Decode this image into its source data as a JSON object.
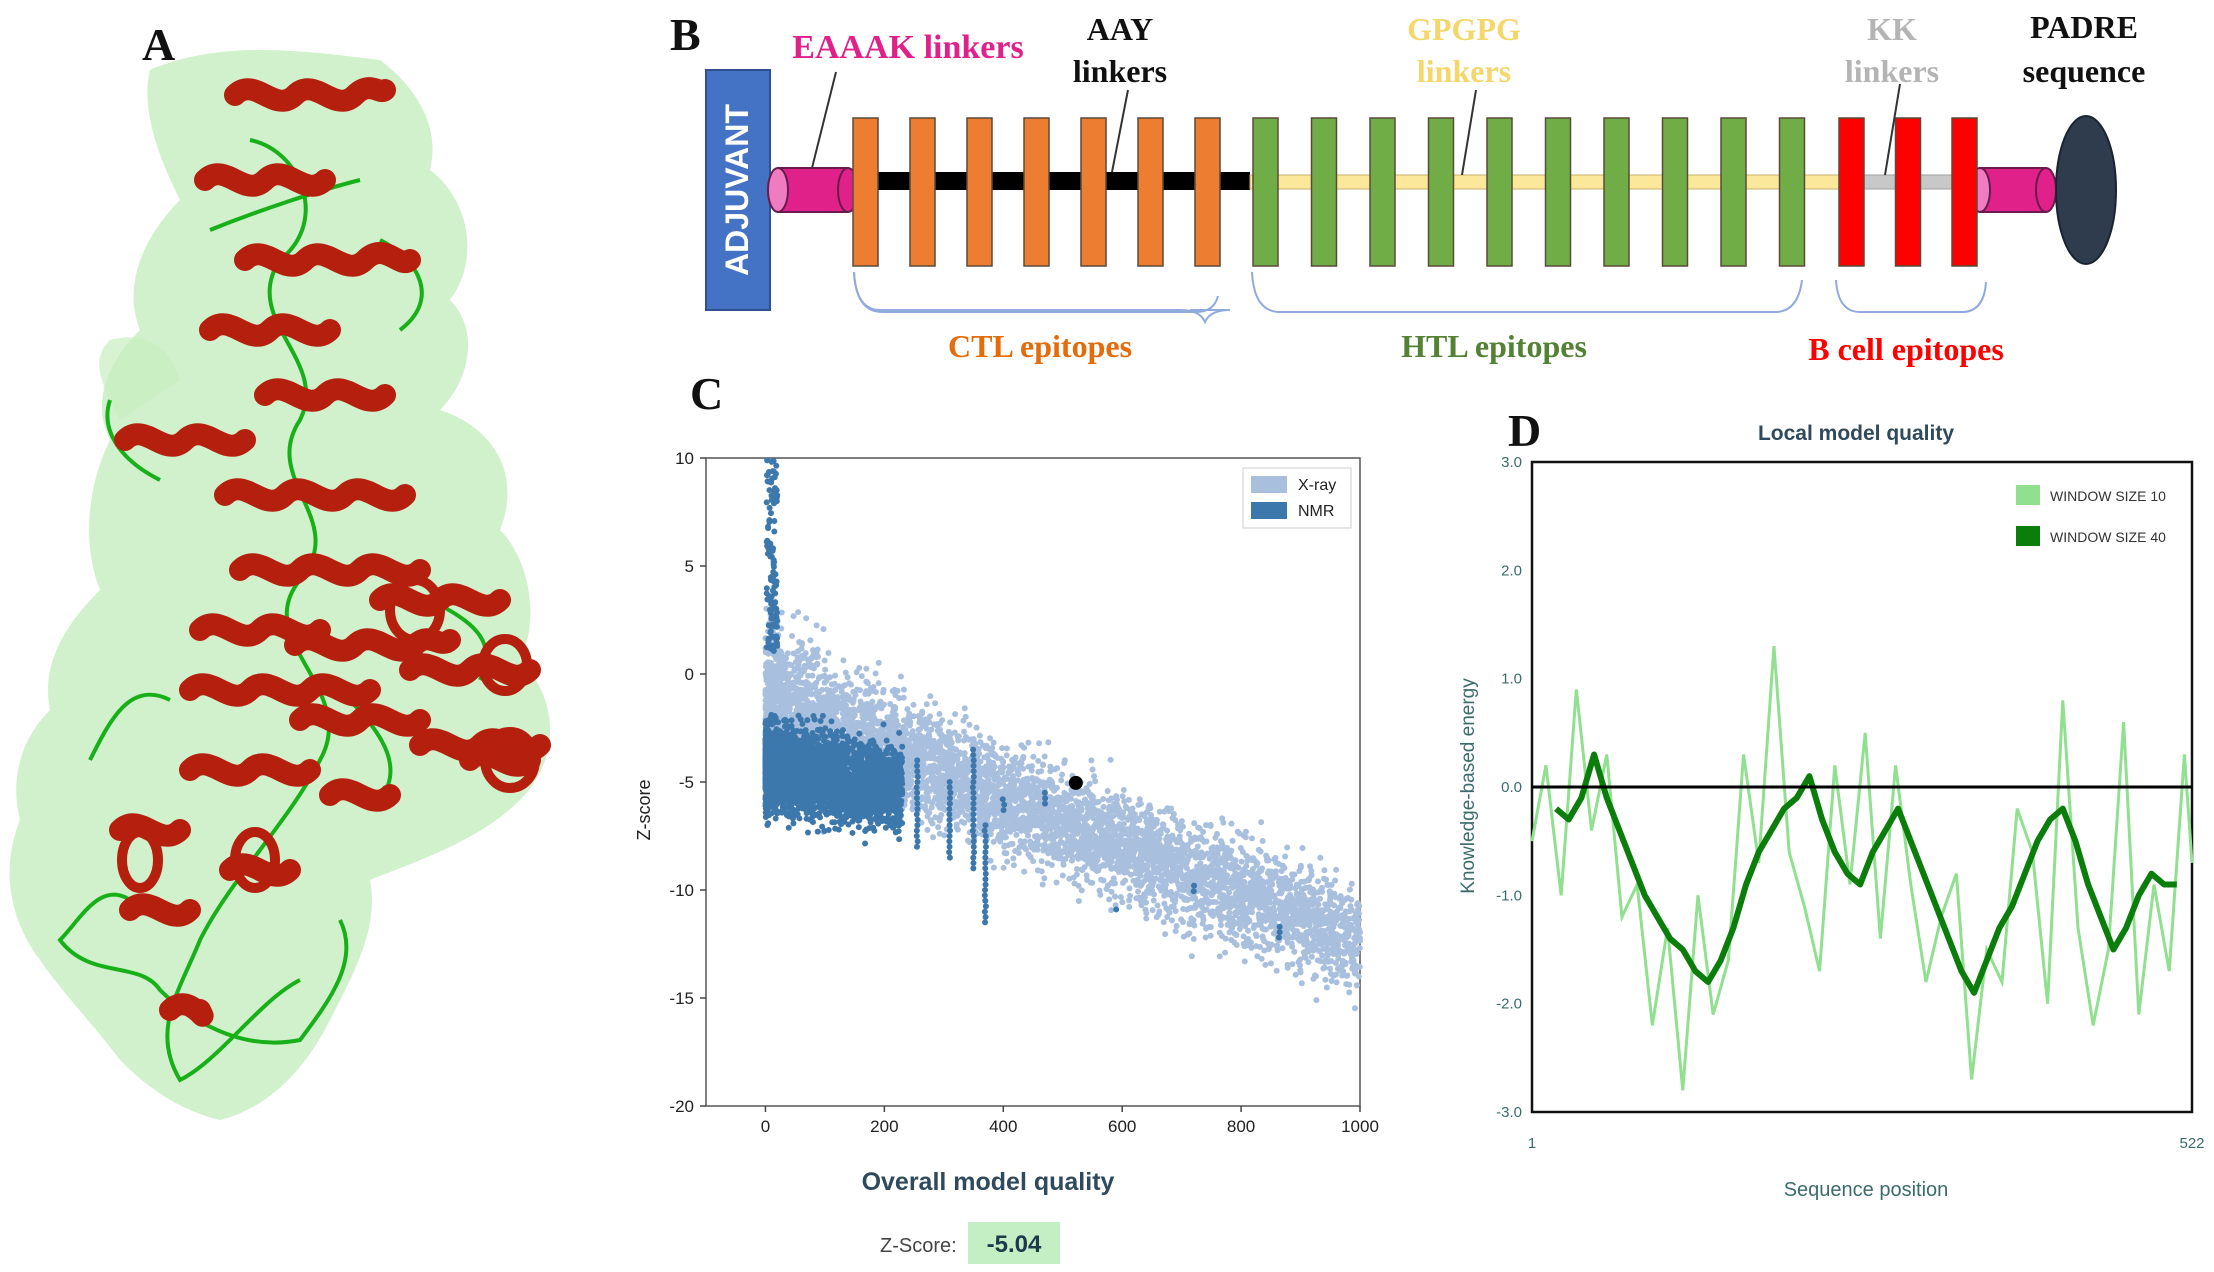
{
  "panels": {
    "a": "A",
    "b": "B",
    "c": "C",
    "d": "D"
  },
  "construct": {
    "adjuvant": "ADJUVANT",
    "eaaak": "EAAAK linkers",
    "aay": [
      "AAY",
      "linkers"
    ],
    "gpgpg": [
      "GPGPG",
      "linkers"
    ],
    "kk": [
      "KK",
      "linkers"
    ],
    "padre": [
      "PADRE",
      "sequence"
    ],
    "ctl": "CTL epitopes",
    "htl": "HTL epitopes",
    "bcell": "B cell epitopes",
    "ctl_count": 7,
    "htl_count": 10,
    "bcell_count": 3,
    "colors": {
      "adjuvant": "#4472c4",
      "eaaak": "#e0218a",
      "ctl": "#ed7d31",
      "htl": "#70ad47",
      "bcell": "#ff0000",
      "aay_linker": "#000000",
      "gpgpg_linker": "#fce89a",
      "kk_linker": "#c8c8c8",
      "padre": "#2e3c4e",
      "label_magenta": "#e0218a",
      "label_gpgpg": "#f5d66b",
      "label_kk": "#b4b4b4",
      "label_ctl": "#e46c0a",
      "label_htl": "#548235",
      "label_bcell": "#ff0000"
    }
  },
  "chart_data": [
    {
      "type": "scatter",
      "panel": "C",
      "title": "Overall model quality",
      "xlabel": "",
      "ylabel": "Z-score",
      "xlim": [
        -100,
        1000
      ],
      "ylim": [
        -20,
        10
      ],
      "xticks": [
        0,
        200,
        400,
        600,
        800,
        1000
      ],
      "yticks": [
        10,
        5,
        0,
        -5,
        -10,
        -15,
        -20
      ],
      "legend": [
        "X-ray",
        "NMR"
      ],
      "legend_position": "top-right",
      "series": [
        {
          "name": "X-ray",
          "color": "#a8bfde",
          "description": "dense cloud from ~0 to 1000 residues, Z-score from about +8 to -17, trending downward"
        },
        {
          "name": "NMR",
          "color": "#3d78ad",
          "description": "dense band from ~0 to ~250 residues, Z-score about +10 to -10"
        }
      ],
      "highlight": {
        "x": 522,
        "y": -5.04,
        "color": "#000000"
      },
      "zscore_label": "Z-Score:",
      "zscore_value": "-5.04"
    },
    {
      "type": "line",
      "panel": "D",
      "title": "Local model quality",
      "xlabel": "Sequence position",
      "ylabel": "Knowledge-based energy",
      "xlim": [
        1,
        522
      ],
      "ylim": [
        -3.0,
        3.0
      ],
      "xticks": [
        "1",
        "522"
      ],
      "yticks": [
        "3.0",
        "2.0",
        "1.0",
        "0.0",
        "-1.0",
        "-2.0",
        "-3.0"
      ],
      "legend_position": "top-right",
      "series": [
        {
          "name": "WINDOW SIZE 10",
          "color": "#90e090",
          "x": [
            1,
            12,
            24,
            36,
            48,
            60,
            72,
            84,
            96,
            108,
            120,
            132,
            144,
            156,
            168,
            180,
            192,
            204,
            216,
            228,
            240,
            252,
            264,
            276,
            288,
            300,
            312,
            324,
            336,
            348,
            360,
            372,
            384,
            396,
            408,
            420,
            432,
            444,
            456,
            468,
            480,
            492,
            504,
            516,
            522
          ],
          "values": [
            -0.5,
            0.2,
            -1.0,
            0.9,
            -0.4,
            0.3,
            -1.2,
            -0.9,
            -2.2,
            -1.3,
            -2.8,
            -1.0,
            -2.1,
            -1.6,
            0.3,
            -0.7,
            1.3,
            -0.6,
            -1.1,
            -1.7,
            0.2,
            -0.9,
            0.5,
            -1.4,
            0.2,
            -0.9,
            -1.8,
            -1.2,
            -0.8,
            -2.7,
            -1.5,
            -1.8,
            -0.2,
            -0.6,
            -2.0,
            0.8,
            -1.3,
            -2.2,
            -1.5,
            0.6,
            -2.1,
            -0.9,
            -1.7,
            0.3,
            -0.7
          ]
        },
        {
          "name": "WINDOW SIZE 40",
          "color": "#0a7d0a",
          "x": [
            20,
            30,
            40,
            50,
            60,
            70,
            80,
            90,
            100,
            110,
            120,
            130,
            140,
            150,
            160,
            170,
            180,
            190,
            200,
            210,
            220,
            230,
            240,
            250,
            260,
            270,
            280,
            290,
            300,
            310,
            320,
            330,
            340,
            350,
            360,
            370,
            380,
            390,
            400,
            410,
            420,
            430,
            440,
            450,
            460,
            470,
            480,
            490,
            500,
            510
          ],
          "values": [
            -0.2,
            -0.3,
            -0.1,
            0.3,
            -0.1,
            -0.4,
            -0.7,
            -1.0,
            -1.2,
            -1.4,
            -1.5,
            -1.7,
            -1.8,
            -1.6,
            -1.3,
            -0.9,
            -0.6,
            -0.4,
            -0.2,
            -0.1,
            0.1,
            -0.3,
            -0.6,
            -0.8,
            -0.9,
            -0.6,
            -0.4,
            -0.2,
            -0.5,
            -0.8,
            -1.1,
            -1.4,
            -1.7,
            -1.9,
            -1.6,
            -1.3,
            -1.1,
            -0.8,
            -0.5,
            -0.3,
            -0.2,
            -0.5,
            -0.9,
            -1.2,
            -1.5,
            -1.3,
            -1.0,
            -0.8,
            -0.9,
            -0.9
          ]
        }
      ]
    }
  ]
}
